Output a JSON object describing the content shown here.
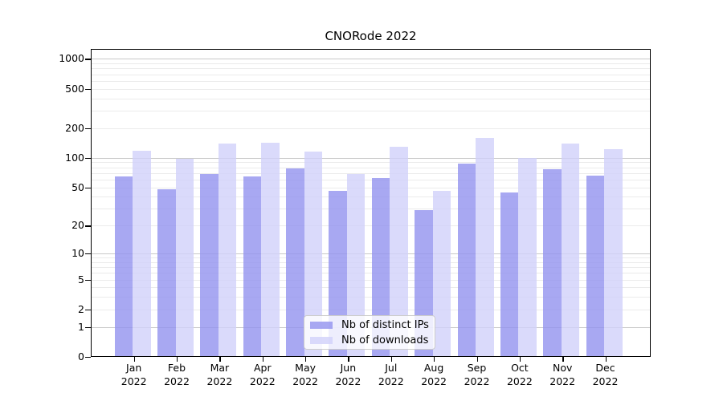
{
  "chart_data": {
    "type": "bar",
    "title": "CNORode 2022",
    "xlabel": "",
    "ylabel": "",
    "categories": [
      "Jan",
      "Feb",
      "Mar",
      "Apr",
      "May",
      "Jun",
      "Jul",
      "Aug",
      "Sep",
      "Oct",
      "Nov",
      "Dec"
    ],
    "year_label": "2022",
    "series": [
      {
        "name": "Nb of distinct IPs",
        "color": "#9292ef",
        "values": [
          65,
          48,
          68,
          65,
          78,
          46,
          62,
          29,
          87,
          44,
          76,
          66
        ]
      },
      {
        "name": "Nb of downloads",
        "color": "#d1d1fa",
        "values": [
          117,
          97,
          140,
          143,
          115,
          68,
          130,
          46,
          158,
          100,
          140,
          122
        ]
      }
    ],
    "y_scale": "log1p",
    "ylim": [
      0,
      1250
    ],
    "y_ticks_labeled": [
      0,
      1,
      2,
      5,
      10,
      20,
      50,
      100,
      200,
      500,
      1000
    ],
    "y_grid_major": [
      1,
      10,
      100,
      1000
    ],
    "y_grid_minor": [
      2,
      3,
      4,
      5,
      6,
      7,
      8,
      9,
      20,
      30,
      40,
      50,
      60,
      70,
      80,
      90,
      200,
      300,
      400,
      500,
      600,
      700,
      800,
      900
    ],
    "grid": true,
    "legend_position": "lower-center"
  },
  "colors": {
    "bar_ips": "#9292ef",
    "bar_downloads": "#d1d1fa",
    "grid_major": "#c9c9c9",
    "grid_minor": "#ebebeb",
    "axis": "#000000",
    "legend_border": "#cccccc",
    "background": "#ffffff"
  }
}
